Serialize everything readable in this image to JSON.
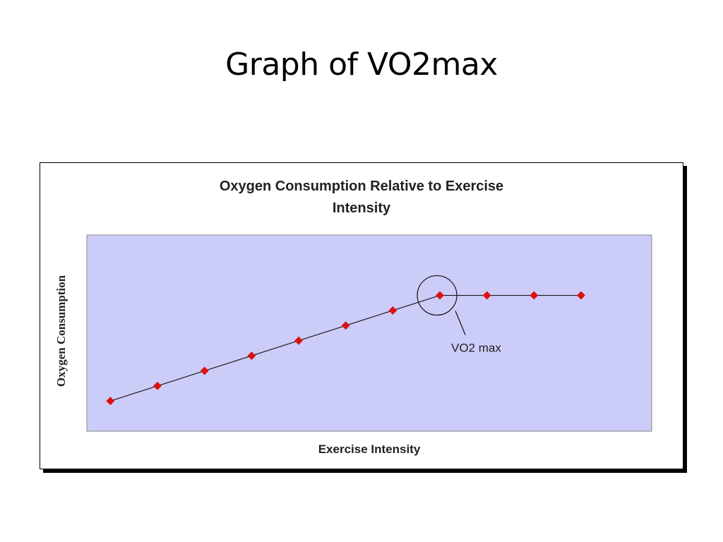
{
  "slide": {
    "title": "Graph of VO2max"
  },
  "chart_data": {
    "type": "line",
    "title": "Oxygen Consumption Relative to Exercise\nIntensity",
    "xlabel": "Exercise Intensity",
    "ylabel": "Oxygen Consumption",
    "x": [
      1,
      2,
      3,
      4,
      5,
      6,
      7,
      8,
      9,
      10,
      11
    ],
    "series": [
      {
        "values": [
          1.0,
          2.0,
          3.0,
          4.0,
          5.0,
          6.0,
          7.0,
          8.0,
          8.0,
          8.0,
          8.0
        ]
      }
    ],
    "xlim": [
      0.5,
      12.5
    ],
    "ylim": [
      -1.0,
      12.0
    ],
    "grid": false,
    "legend": "none",
    "colors": {
      "plot_area": "#ccccf9",
      "line": "#1a1a1a",
      "marker": "#dd1111"
    },
    "annotation": {
      "text": "VO2 max",
      "point_index": 7
    }
  }
}
